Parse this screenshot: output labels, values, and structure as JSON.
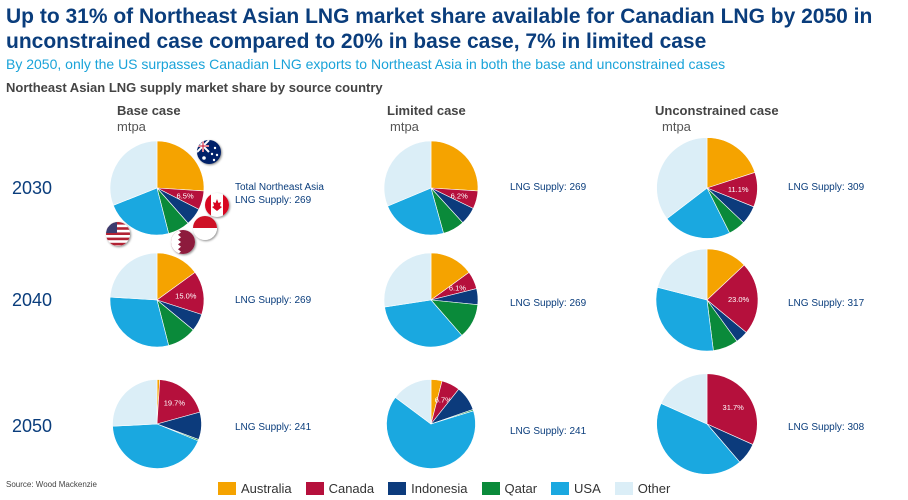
{
  "header": {
    "title": "Up to 31% of Northeast Asian LNG market share available for Canadian LNG by 2050 in unconstrained case compared to 20% in base case, 7% in limited case",
    "subtitle": "By 2050, only the US surpasses Canadian LNG exports to Northeast Asia in both the base and unconstrained cases",
    "chart_title": "Northeast Asian LNG supply market share by source country"
  },
  "columns": [
    {
      "name": "Base case",
      "unit": "mtpa"
    },
    {
      "name": "Limited case",
      "unit": "mtpa"
    },
    {
      "name": "Unconstrained case",
      "unit": "mtpa"
    }
  ],
  "rows": [
    "2030",
    "2040",
    "2050"
  ],
  "supply_labels": [
    [
      "Total Northeast Asia\nLNG Supply: 269",
      "LNG Supply: 269",
      "LNG Supply: 309"
    ],
    [
      "LNG Supply: 269",
      "LNG Supply: 269",
      "LNG Supply: 317"
    ],
    [
      "LNG Supply: 241",
      "LNG Supply: 241",
      "LNG Supply: 308"
    ]
  ],
  "source": "Source: Wood Mackenzie",
  "flags": [
    "australia-flag-icon",
    "canada-flag-icon",
    "usa-flag-icon",
    "qatar-flag-icon",
    "indonesia-flag-icon"
  ],
  "chart_data": {
    "type": "pie",
    "categories": [
      "Australia",
      "Canada",
      "Indonesia",
      "Qatar",
      "USA",
      "Other"
    ],
    "colors": [
      "#f5a300",
      "#b5103c",
      "#0c3b7c",
      "#0a8a3a",
      "#1aa8e0",
      "#dbeef7"
    ],
    "legend_position": "bottom",
    "pies": [
      {
        "scenario": "Base case",
        "year": "2030",
        "total_supply": 269,
        "canada_label": "6.5%",
        "shares": [
          26.0,
          6.5,
          6.0,
          7.5,
          23.0,
          31.0
        ]
      },
      {
        "scenario": "Limited case",
        "year": "2030",
        "total_supply": 269,
        "canada_label": "6.2%",
        "shares": [
          26.0,
          6.2,
          6.0,
          7.5,
          23.0,
          31.3
        ]
      },
      {
        "scenario": "Unconstrained case",
        "year": "2030",
        "total_supply": 309,
        "canada_label": "11.1%",
        "shares": [
          20.0,
          11.1,
          6.0,
          5.5,
          22.0,
          35.4
        ]
      },
      {
        "scenario": "Base case",
        "year": "2040",
        "total_supply": 269,
        "canada_label": "15.0%",
        "shares": [
          15.0,
          15.0,
          6.0,
          10.0,
          30.0,
          24.0
        ]
      },
      {
        "scenario": "Limited case",
        "year": "2040",
        "total_supply": 269,
        "canada_label": "6.1%",
        "shares": [
          15.0,
          6.1,
          5.5,
          12.0,
          34.0,
          27.4
        ]
      },
      {
        "scenario": "Unconstrained case",
        "year": "2040",
        "total_supply": 317,
        "canada_label": "23.0%",
        "shares": [
          13.0,
          23.0,
          4.0,
          8.0,
          31.0,
          21.0
        ]
      },
      {
        "scenario": "Base case",
        "year": "2050",
        "total_supply": 241,
        "canada_label": "19.7%",
        "shares": [
          1.0,
          19.7,
          10.0,
          0.5,
          43.0,
          25.8
        ]
      },
      {
        "scenario": "Limited case",
        "year": "2050",
        "total_supply": 241,
        "canada_label": "6.7%",
        "shares": [
          4.0,
          6.7,
          9.0,
          0.5,
          65.0,
          14.8
        ]
      },
      {
        "scenario": "Unconstrained case",
        "year": "2050",
        "total_supply": 308,
        "canada_label": "31.7%",
        "shares": [
          0.0,
          31.7,
          7.0,
          0.0,
          43.0,
          18.3
        ]
      }
    ]
  }
}
